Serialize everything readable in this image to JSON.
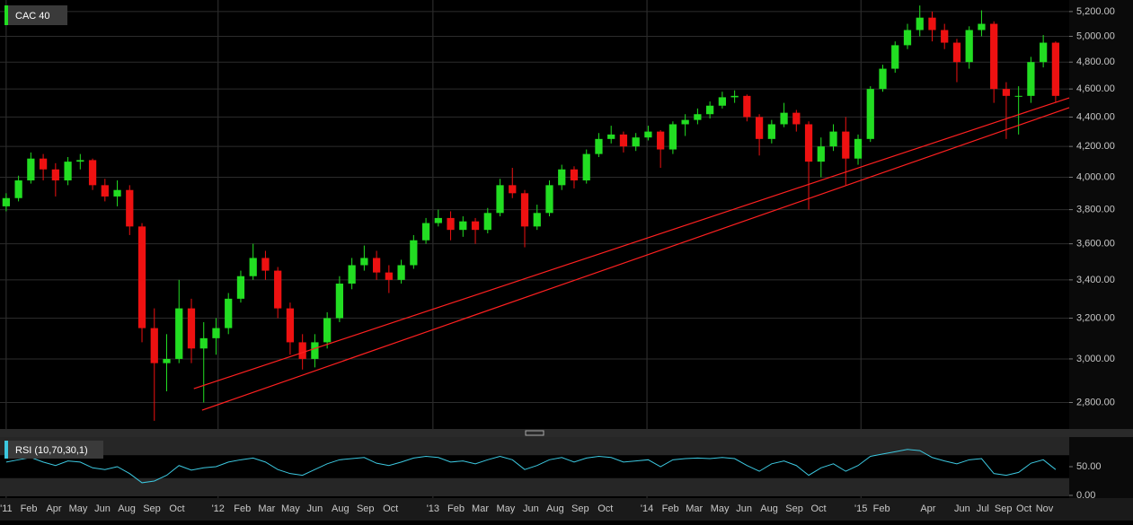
{
  "chart_data": [
    {
      "type": "candlestick",
      "title": "CAC 40",
      "log": true,
      "grid": true,
      "up_color": "#22dd22",
      "down_color": "#ee1111",
      "x": [
        0,
        3,
        6,
        9,
        12,
        15,
        18,
        21,
        24,
        27,
        30,
        33,
        36,
        39,
        42,
        45,
        48,
        51,
        54,
        57,
        60,
        63,
        66,
        69,
        72,
        75,
        78,
        81,
        84,
        87,
        90,
        93,
        96,
        99,
        102,
        105,
        108,
        111,
        114,
        117,
        120,
        123,
        126,
        129,
        132,
        135,
        138,
        141,
        144,
        147,
        150,
        153,
        156,
        159,
        162,
        165,
        168,
        171,
        174,
        177,
        180,
        183,
        186,
        189,
        192,
        195,
        198,
        201,
        204,
        207,
        210,
        213,
        216,
        219,
        222,
        225,
        228,
        231,
        234,
        237,
        240,
        243,
        246,
        249,
        252,
        255
      ],
      "open": [
        3820,
        3870,
        3980,
        4120,
        4050,
        3980,
        4100,
        4110,
        3950,
        3880,
        3920,
        3700,
        3150,
        2980,
        3000,
        3250,
        3050,
        3100,
        3150,
        3300,
        3420,
        3520,
        3450,
        3250,
        3080,
        3000,
        3080,
        3200,
        3380,
        3480,
        3520,
        3440,
        3400,
        3480,
        3620,
        3720,
        3750,
        3680,
        3730,
        3680,
        3780,
        3950,
        3900,
        3700,
        3780,
        3950,
        4050,
        3980,
        4150,
        4250,
        4280,
        4200,
        4260,
        4300,
        4180,
        4350,
        4380,
        4420,
        4480,
        4540,
        4550,
        4400,
        4250,
        4350,
        4430,
        4350,
        4100,
        4200,
        4300,
        4120,
        4250,
        4600,
        4750,
        4930,
        5050,
        5150,
        5050,
        4950,
        4800,
        5050,
        5100,
        4600,
        4550,
        4550,
        4800,
        4950
      ],
      "high": [
        3900,
        4010,
        4160,
        4150,
        4090,
        4130,
        4150,
        4120,
        3990,
        3980,
        3950,
        3720,
        3250,
        3120,
        3400,
        3300,
        3180,
        3200,
        3330,
        3450,
        3600,
        3560,
        3470,
        3280,
        3120,
        3120,
        3230,
        3420,
        3520,
        3590,
        3560,
        3480,
        3510,
        3650,
        3750,
        3800,
        3790,
        3760,
        3750,
        3810,
        3990,
        4060,
        3920,
        3830,
        3980,
        4080,
        4070,
        4180,
        4290,
        4340,
        4300,
        4290,
        4340,
        4310,
        4370,
        4420,
        4460,
        4510,
        4580,
        4590,
        4560,
        4420,
        4380,
        4500,
        4450,
        4370,
        4260,
        4350,
        4400,
        4280,
        4620,
        4780,
        4960,
        5100,
        5250,
        5200,
        5100,
        4980,
        5080,
        5210,
        5120,
        4650,
        4620,
        4840,
        5010,
        4960
      ],
      "low": [
        3790,
        3850,
        3960,
        3980,
        3880,
        3950,
        4050,
        3920,
        3850,
        3820,
        3650,
        3080,
        2720,
        2850,
        2980,
        2980,
        2800,
        3020,
        3120,
        3280,
        3400,
        3400,
        3200,
        3020,
        2950,
        2960,
        3050,
        3180,
        3350,
        3450,
        3400,
        3330,
        3380,
        3460,
        3600,
        3700,
        3620,
        3640,
        3600,
        3660,
        3760,
        3870,
        3580,
        3680,
        3760,
        3920,
        3930,
        3960,
        4130,
        4220,
        4160,
        4170,
        4240,
        4060,
        4150,
        4270,
        4350,
        4390,
        4460,
        4500,
        4370,
        4140,
        4220,
        4330,
        4300,
        3800,
        4000,
        4170,
        3950,
        4080,
        4230,
        4580,
        4720,
        4900,
        5000,
        4960,
        4900,
        4650,
        4750,
        5000,
        4500,
        4250,
        4280,
        4500,
        4760,
        4500
      ],
      "close": [
        3870,
        3980,
        4120,
        4050,
        3980,
        4100,
        4110,
        3950,
        3880,
        3920,
        3700,
        3150,
        2980,
        3000,
        3250,
        3050,
        3100,
        3150,
        3300,
        3420,
        3520,
        3450,
        3250,
        3080,
        3000,
        3080,
        3200,
        3380,
        3480,
        3520,
        3440,
        3400,
        3480,
        3620,
        3720,
        3750,
        3680,
        3730,
        3680,
        3780,
        3950,
        3900,
        3700,
        3780,
        3950,
        4050,
        3980,
        4150,
        4250,
        4280,
        4200,
        4260,
        4300,
        4180,
        4350,
        4380,
        4420,
        4480,
        4540,
        4550,
        4400,
        4250,
        4350,
        4430,
        4350,
        4100,
        4200,
        4300,
        4120,
        4250,
        4600,
        4750,
        4930,
        5050,
        5150,
        5050,
        4950,
        4800,
        5050,
        5100,
        4600,
        4550,
        4550,
        4800,
        4950,
        4550
      ],
      "trendlines": [
        {
          "color": "#ff2020",
          "x": [
            45.6,
            258.3
          ],
          "y": [
            2862,
            4536
          ]
        },
        {
          "color": "#ff2020",
          "x": [
            47.6,
            258.3
          ],
          "y": [
            2766,
            4466
          ]
        }
      ],
      "xlim": [
        -1.5,
        258.3
      ],
      "ylim": [
        2685,
        5296
      ],
      "yticks": [
        {
          "value": 2800,
          "label": "2,800.00"
        },
        {
          "value": 3000,
          "label": "3,000.00"
        },
        {
          "value": 3200,
          "label": "3,200.00"
        },
        {
          "value": 3400,
          "label": "3,400.00"
        },
        {
          "value": 3600,
          "label": "3,600.00"
        },
        {
          "value": 3800,
          "label": "3,800.00"
        },
        {
          "value": 4000,
          "label": "4,000.00"
        },
        {
          "value": 4200,
          "label": "4,200.00"
        },
        {
          "value": 4400,
          "label": "4,400.00"
        },
        {
          "value": 4600,
          "label": "4,600.00"
        },
        {
          "value": 4800,
          "label": "4,800.00"
        },
        {
          "value": 5000,
          "label": "5,000.00"
        },
        {
          "value": 5200,
          "label": "5,200.00"
        }
      ],
      "xticks": [
        {
          "value": 0,
          "label": "'11"
        },
        {
          "value": 5.5,
          "label": "Feb"
        },
        {
          "value": 11.6,
          "label": "Apr"
        },
        {
          "value": 17.5,
          "label": "May"
        },
        {
          "value": 23.4,
          "label": "Jun"
        },
        {
          "value": 29.3,
          "label": "Aug"
        },
        {
          "value": 35.4,
          "label": "Sep"
        },
        {
          "value": 41.5,
          "label": "Oct"
        },
        {
          "value": 51.5,
          "label": "'12"
        },
        {
          "value": 57.4,
          "label": "Feb"
        },
        {
          "value": 63.3,
          "label": "Mar"
        },
        {
          "value": 69.1,
          "label": "May"
        },
        {
          "value": 75,
          "label": "Jun"
        },
        {
          "value": 81.2,
          "label": "Aug"
        },
        {
          "value": 87.3,
          "label": "Sep"
        },
        {
          "value": 93.4,
          "label": "Oct"
        },
        {
          "value": 103.7,
          "label": "'13"
        },
        {
          "value": 109.3,
          "label": "Feb"
        },
        {
          "value": 115.2,
          "label": "Mar"
        },
        {
          "value": 121.4,
          "label": "May"
        },
        {
          "value": 127.5,
          "label": "Jun"
        },
        {
          "value": 133.4,
          "label": "Aug"
        },
        {
          "value": 139.5,
          "label": "Sep"
        },
        {
          "value": 145.6,
          "label": "Oct"
        },
        {
          "value": 155.7,
          "label": "'14"
        },
        {
          "value": 161.4,
          "label": "Feb"
        },
        {
          "value": 167.2,
          "label": "Mar"
        },
        {
          "value": 173.4,
          "label": "May"
        },
        {
          "value": 179.3,
          "label": "Jun"
        },
        {
          "value": 185.4,
          "label": "Aug"
        },
        {
          "value": 191.5,
          "label": "Sep"
        },
        {
          "value": 197.4,
          "label": "Oct"
        },
        {
          "value": 207.7,
          "label": "'15"
        },
        {
          "value": 212.7,
          "label": "Feb"
        },
        {
          "value": 224,
          "label": "Apr"
        },
        {
          "value": 232.3,
          "label": "Jun"
        },
        {
          "value": 237.3,
          "label": "Jul"
        },
        {
          "value": 242.3,
          "label": "Sep"
        },
        {
          "value": 247.3,
          "label": "Oct"
        },
        {
          "value": 252.3,
          "label": "Nov"
        }
      ]
    },
    {
      "type": "line",
      "title": "RSI (10,70,30,1)",
      "color": "#3cc8e0",
      "band": [
        30,
        70
      ],
      "values": [
        58,
        62,
        66,
        58,
        52,
        60,
        58,
        48,
        45,
        50,
        38,
        22,
        25,
        35,
        52,
        44,
        48,
        50,
        58,
        62,
        65,
        58,
        45,
        38,
        35,
        45,
        55,
        62,
        64,
        66,
        56,
        52,
        58,
        65,
        68,
        66,
        58,
        60,
        55,
        62,
        68,
        62,
        45,
        52,
        62,
        66,
        58,
        65,
        68,
        66,
        58,
        60,
        62,
        50,
        62,
        64,
        65,
        64,
        66,
        64,
        52,
        42,
        55,
        60,
        52,
        35,
        48,
        55,
        42,
        52,
        68,
        72,
        76,
        80,
        78,
        66,
        60,
        55,
        62,
        64,
        38,
        35,
        40,
        56,
        62,
        45
      ],
      "ylim": [
        0,
        100
      ],
      "yticks": [
        {
          "value": 50,
          "label": "50.00"
        },
        {
          "value": 0,
          "label": "0.00"
        }
      ]
    }
  ]
}
